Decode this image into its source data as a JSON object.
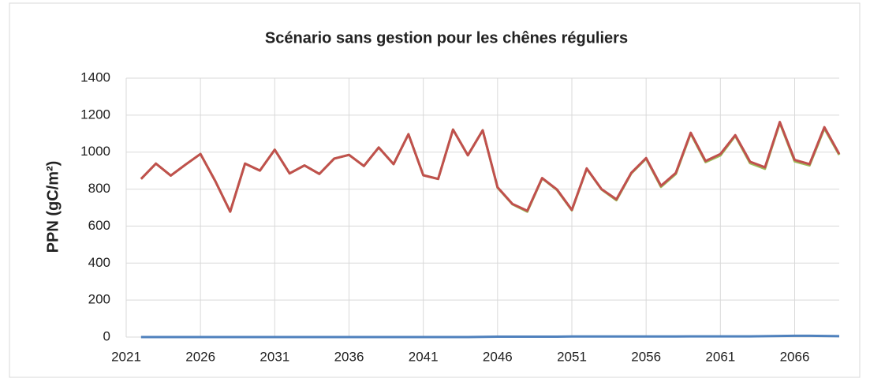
{
  "chart_data": {
    "type": "line",
    "title": "Scénario sans gestion pour les chênes réguliers",
    "y_label": "PPN  (gC/m²)",
    "x": [
      2022,
      2023,
      2024,
      2025,
      2026,
      2027,
      2028,
      2029,
      2030,
      2031,
      2032,
      2033,
      2034,
      2035,
      2036,
      2037,
      2038,
      2039,
      2040,
      2041,
      2042,
      2043,
      2044,
      2045,
      2046,
      2047,
      2048,
      2049,
      2050,
      2051,
      2052,
      2053,
      2054,
      2055,
      2056,
      2057,
      2058,
      2059,
      2060,
      2061,
      2062,
      2063,
      2064,
      2065,
      2066,
      2067,
      2068,
      2069
    ],
    "series": [
      {
        "color": "#9bbb59",
        "values": [
          855,
          938,
          873,
          933,
          990,
          843,
          678,
          938,
          900,
          1013,
          885,
          928,
          882,
          965,
          985,
          925,
          1025,
          935,
          1097,
          875,
          855,
          1122,
          983,
          1118,
          808,
          718,
          678,
          858,
          795,
          685,
          910,
          798,
          740,
          885,
          965,
          812,
          882,
          1100,
          946,
          982,
          1088,
          940,
          910,
          1158,
          950,
          928,
          1128,
          985
        ]
      },
      {
        "color": "#c0504d",
        "values": [
          855,
          938,
          873,
          933,
          990,
          843,
          678,
          938,
          900,
          1013,
          885,
          928,
          882,
          965,
          985,
          925,
          1025,
          935,
          1097,
          875,
          855,
          1122,
          983,
          1118,
          810,
          720,
          683,
          860,
          798,
          688,
          912,
          800,
          745,
          888,
          968,
          818,
          888,
          1105,
          952,
          990,
          1092,
          948,
          918,
          1163,
          958,
          935,
          1135,
          990
        ]
      },
      {
        "color": "#4f81bd",
        "values": [
          0,
          0,
          0,
          0,
          0,
          0,
          0,
          0,
          0,
          0,
          0,
          0,
          0,
          0,
          0,
          0,
          0,
          0,
          0,
          0,
          0,
          0,
          0,
          1,
          2,
          2,
          2,
          2,
          2,
          3,
          3,
          3,
          3,
          3,
          3,
          3,
          3,
          4,
          4,
          4,
          4,
          4,
          5,
          6,
          7,
          7,
          6,
          5
        ]
      }
    ],
    "xlim": [
      2021,
      2069
    ],
    "xticks": [
      2021,
      2026,
      2031,
      2036,
      2041,
      2046,
      2051,
      2056,
      2061,
      2066
    ],
    "ylim": [
      0,
      1400
    ],
    "yticks": [
      0,
      200,
      400,
      600,
      800,
      1000,
      1200,
      1400
    ],
    "grid": true
  }
}
